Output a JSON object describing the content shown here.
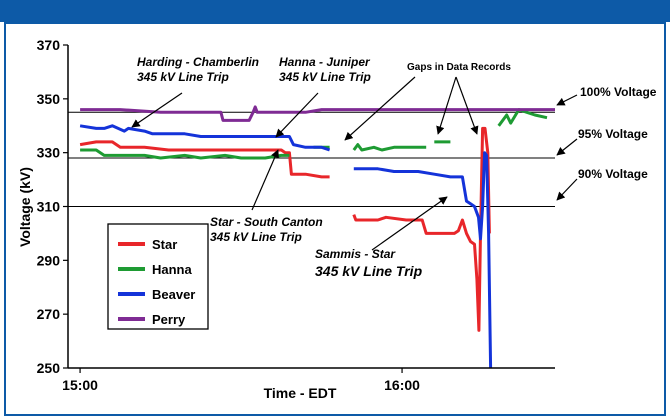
{
  "header": {
    "title": ""
  },
  "chart_data": {
    "type": "line",
    "title": "",
    "xlabel": "Time - EDT",
    "ylabel": "Voltage (kV)",
    "ylim": [
      250,
      370
    ],
    "yticks": [
      250,
      270,
      290,
      310,
      330,
      350,
      370
    ],
    "xticks": [
      "15:00",
      "16:00"
    ],
    "grid": false,
    "legend_position": "left-bottom",
    "reference_lines": [
      {
        "label": "100% Voltage",
        "value": 345
      },
      {
        "label": "95% Voltage",
        "value": 328
      },
      {
        "label": "90% Voltage",
        "value": 310
      }
    ],
    "series": [
      {
        "name": "Star",
        "color": "#e8262a",
        "segments": [
          [
            [
              0,
              333
            ],
            [
              4,
              334
            ],
            [
              8,
              334
            ],
            [
              10,
              332
            ],
            [
              16,
              332
            ],
            [
              22,
              331
            ],
            [
              40,
              331
            ],
            [
              50,
              331
            ],
            [
              51,
              330
            ],
            [
              52,
              330
            ],
            [
              52.5,
              322
            ],
            [
              56,
              322
            ],
            [
              60,
              321
            ],
            [
              62,
              321
            ]
          ],
          [
            [
              68,
              307
            ],
            [
              68.5,
              305
            ],
            [
              74,
              305
            ],
            [
              76,
              306
            ],
            [
              81,
              305
            ],
            [
              85,
              305
            ],
            [
              86,
              300
            ],
            [
              93,
              300
            ],
            [
              94,
              301
            ],
            [
              95,
              305
            ],
            [
              96,
              300
            ],
            [
              97,
              297
            ],
            [
              98,
              296
            ],
            [
              98.6,
              283
            ],
            [
              99.1,
              264
            ],
            [
              99.5,
              300
            ],
            [
              100,
              339
            ],
            [
              100.6,
              339
            ],
            [
              101.3,
              330
            ],
            [
              101.7,
              300
            ]
          ]
        ]
      },
      {
        "name": "Hanna",
        "color": "#1e9b33",
        "segments": [
          [
            [
              0,
              331
            ],
            [
              4,
              331
            ],
            [
              6,
              329
            ],
            [
              12,
              329
            ],
            [
              16,
              329
            ],
            [
              20,
              328
            ],
            [
              26,
              329
            ],
            [
              30,
              328
            ],
            [
              36,
              329
            ],
            [
              40,
              328
            ],
            [
              46,
              328
            ],
            [
              50,
              329
            ],
            [
              52,
              329
            ]
          ],
          [
            [
              58,
              332
            ],
            [
              62,
              332
            ]
          ],
          [
            [
              68,
              331
            ],
            [
              69,
              333
            ],
            [
              70,
              331
            ],
            [
              73,
              332
            ],
            [
              75,
              331
            ],
            [
              78,
              332
            ],
            [
              86,
              332
            ]
          ],
          [
            [
              88,
              334
            ],
            [
              92,
              334
            ]
          ],
          [
            [
              104,
              340
            ],
            [
              106,
              344
            ],
            [
              107,
              341
            ],
            [
              109,
              346
            ],
            [
              111,
              345
            ],
            [
              113,
              344
            ],
            [
              116,
              343
            ]
          ]
        ]
      },
      {
        "name": "Beaver",
        "color": "#1433d9",
        "segments": [
          [
            [
              0,
              340
            ],
            [
              4,
              339
            ],
            [
              6,
              339
            ],
            [
              8,
              340
            ],
            [
              11,
              338
            ],
            [
              12,
              339
            ],
            [
              16,
              338
            ],
            [
              18,
              337
            ],
            [
              22,
              337
            ],
            [
              26,
              337
            ],
            [
              30,
              336
            ],
            [
              36,
              336
            ],
            [
              44,
              336
            ],
            [
              50,
              336
            ],
            [
              52,
              336
            ],
            [
              53,
              333
            ],
            [
              56,
              332
            ],
            [
              60,
              332
            ],
            [
              62,
              331
            ]
          ],
          [
            [
              68,
              324
            ],
            [
              70,
              324
            ],
            [
              74,
              324
            ],
            [
              78,
              323
            ],
            [
              84,
              323
            ],
            [
              88,
              322
            ],
            [
              92,
              321
            ],
            [
              95,
              321
            ],
            [
              96,
              312
            ],
            [
              97,
              311
            ],
            [
              98,
              310
            ],
            [
              99,
              306
            ],
            [
              99.5,
              298
            ],
            [
              100,
              310
            ],
            [
              100.5,
              330
            ],
            [
              101,
              329
            ],
            [
              101.5,
              300
            ],
            [
              102,
              250
            ]
          ]
        ]
      },
      {
        "name": "Perry",
        "color": "#7f2b94",
        "segments": [
          [
            [
              0,
              346
            ],
            [
              10,
              346
            ],
            [
              20,
              345
            ],
            [
              30,
              345
            ],
            [
              35,
              345
            ],
            [
              35.5,
              342
            ],
            [
              42,
              342
            ],
            [
              43,
              345
            ],
            [
              43.5,
              347
            ],
            [
              44,
              345
            ],
            [
              56,
              345
            ],
            [
              60,
              346
            ],
            [
              70,
              346
            ],
            [
              80,
              346
            ],
            [
              90,
              346
            ],
            [
              100,
              346
            ],
            [
              110,
              346
            ],
            [
              118,
              346
            ]
          ]
        ]
      }
    ],
    "annotations": [
      {
        "name": "harding-chamberlin",
        "lines": [
          "Harding - Chamberlin",
          "345 kV Line Trip"
        ]
      },
      {
        "name": "hanna-juniper",
        "lines": [
          "Hanna - Juniper",
          "345 kV Line Trip"
        ]
      },
      {
        "name": "gaps",
        "lines": [
          "Gaps in Data Records"
        ]
      },
      {
        "name": "star-south-canton",
        "lines": [
          "Star - South Canton",
          "345 kV Line Trip"
        ]
      },
      {
        "name": "sammis-star",
        "lines": [
          "Sammis - Star",
          "345 kV Line Trip"
        ]
      }
    ]
  }
}
